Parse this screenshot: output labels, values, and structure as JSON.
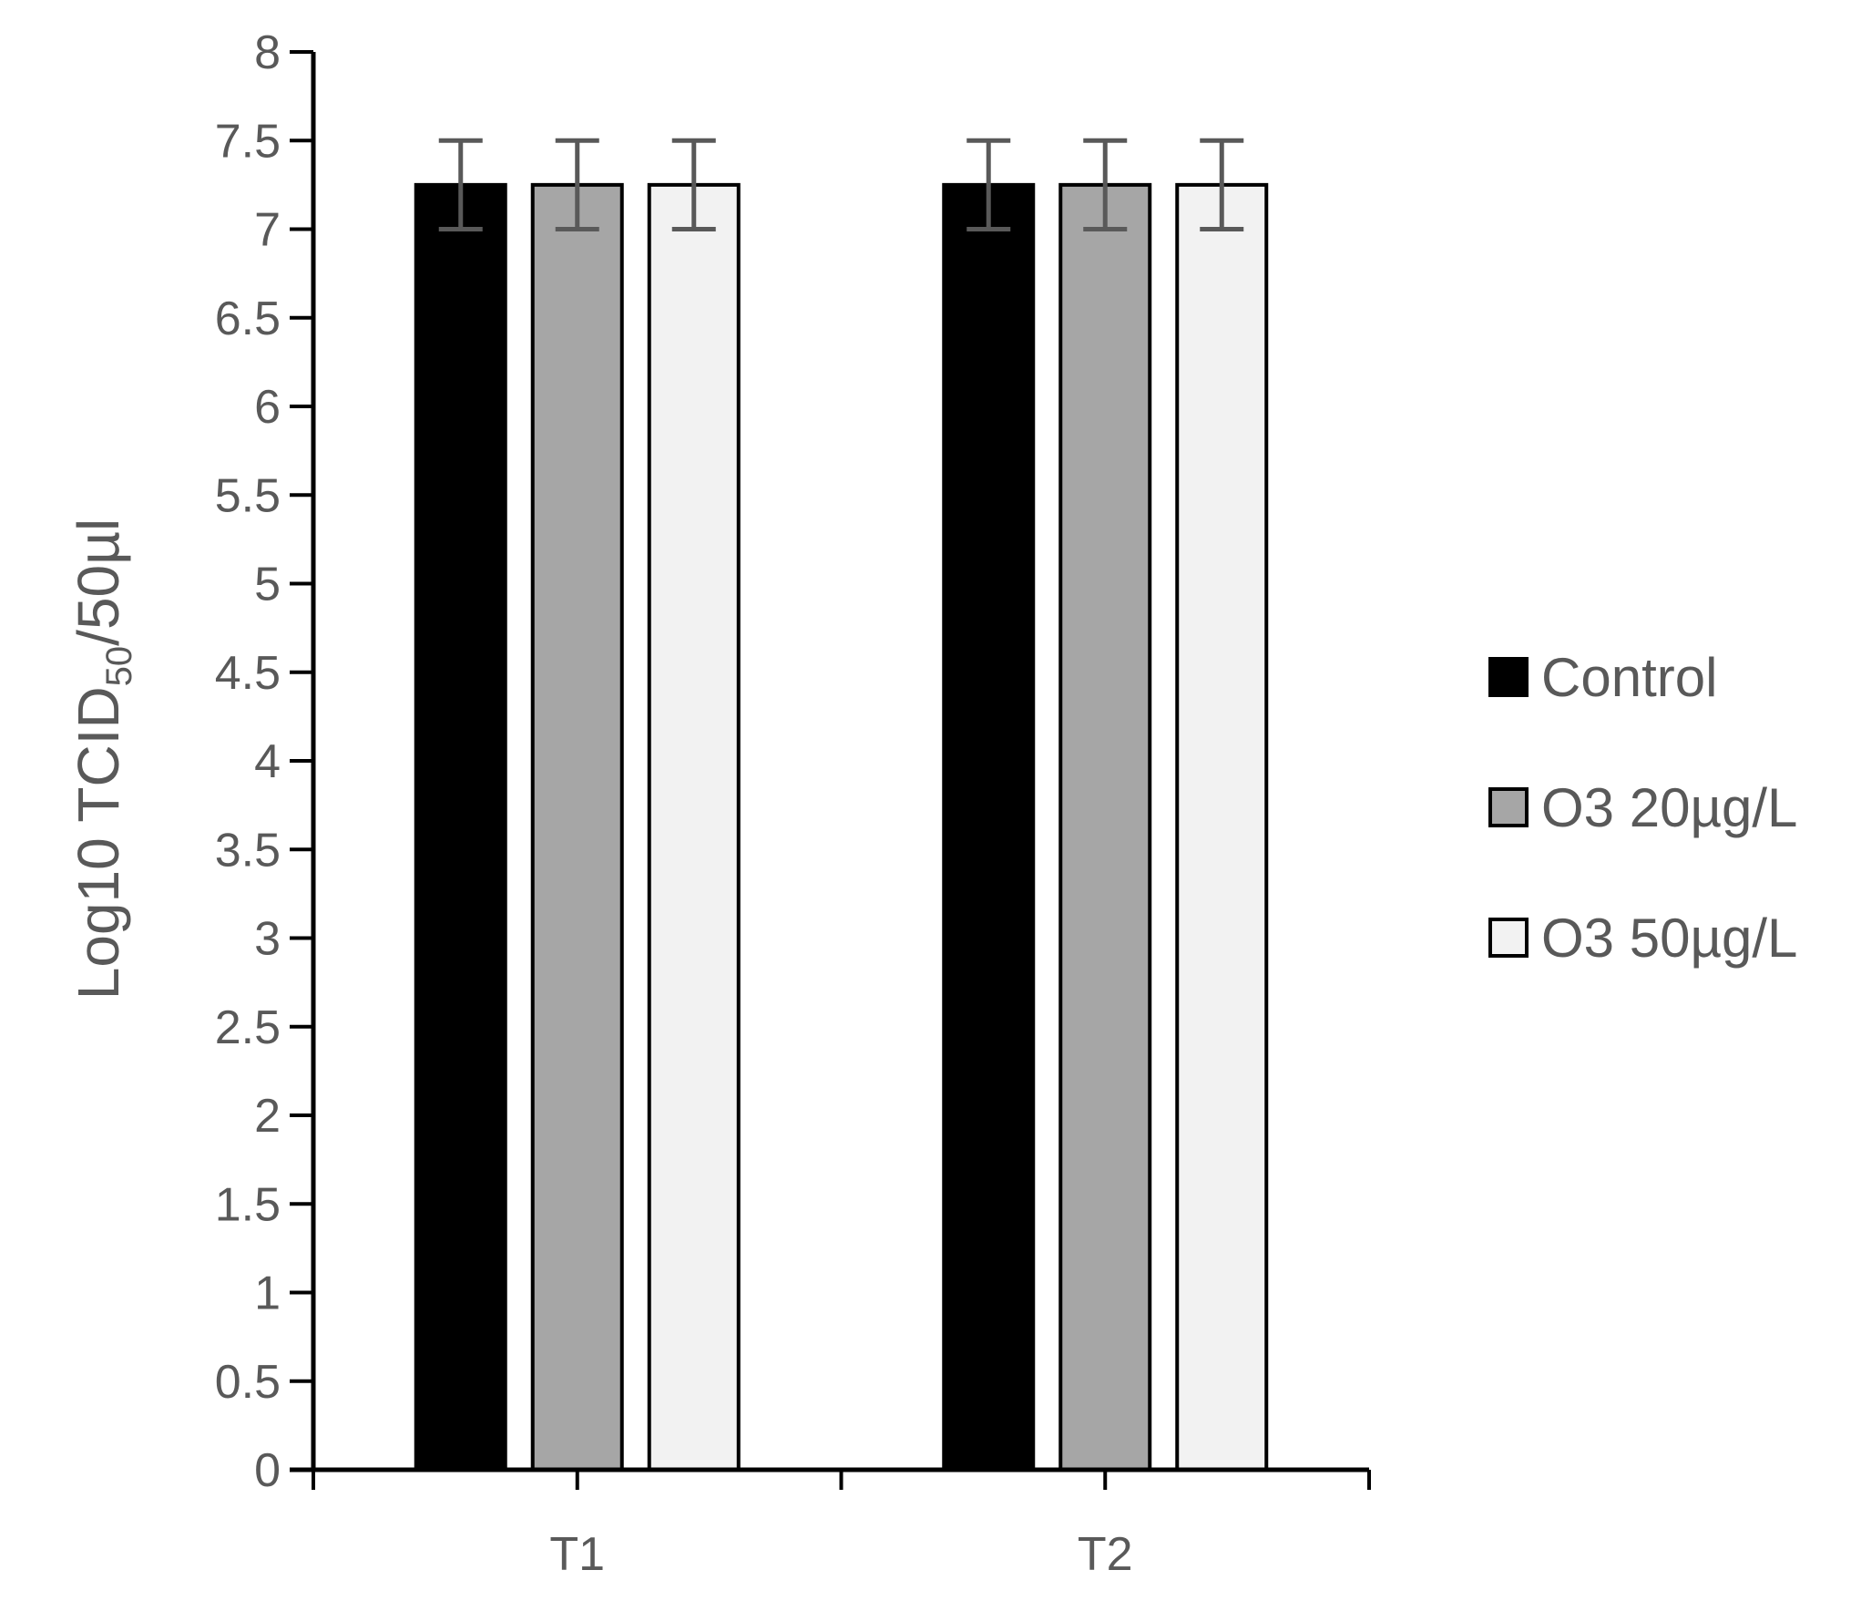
{
  "chart_data": {
    "type": "bar",
    "title": "",
    "xlabel": "",
    "ylabel": {
      "main": "Log10 TCID",
      "subscript": "50",
      "suffix": "/50µl"
    },
    "ylim": [
      0,
      8
    ],
    "yticks": [
      "0",
      "0.5",
      "1",
      "1.5",
      "2",
      "2.5",
      "3",
      "3.5",
      "4",
      "4.5",
      "5",
      "5.5",
      "6",
      "6.5",
      "7",
      "7.5",
      "8"
    ],
    "categories": [
      "T1",
      "T2"
    ],
    "series": [
      {
        "name": "Control",
        "values": [
          7.25,
          7.25
        ],
        "error": [
          0.25,
          0.25
        ],
        "color": "#000000"
      },
      {
        "name": "O3 20µg/L",
        "values": [
          7.25,
          7.25
        ],
        "error": [
          0.25,
          0.25
        ],
        "color": "#a6a6a6"
      },
      {
        "name": "O3 50µg/L",
        "values": [
          7.25,
          7.25
        ],
        "error": [
          0.25,
          0.25
        ],
        "color": "#f2f2f2"
      }
    ],
    "legend_position": "right",
    "grid": false,
    "error_bar_color": "#595959"
  }
}
